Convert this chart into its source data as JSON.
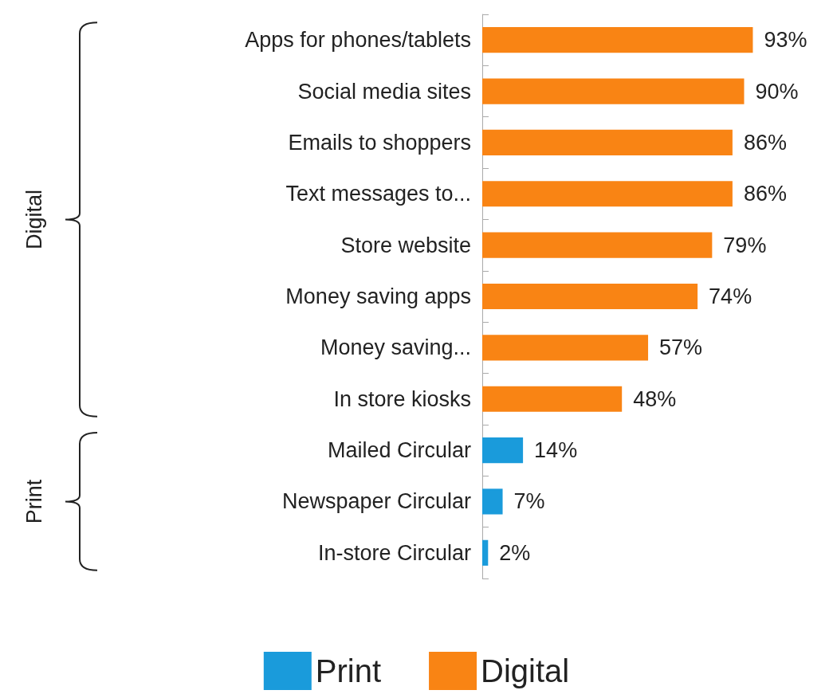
{
  "chart_data": {
    "type": "bar",
    "orientation": "horizontal",
    "stacked": true,
    "categories": [
      "Apps for phones/tablets",
      "Social media sites",
      "Emails to shoppers",
      "Text messages to...",
      "Store website",
      "Money saving apps",
      "Money saving...",
      "In store kiosks",
      "Mailed Circular",
      "Newspaper Circular",
      "In-store Circular"
    ],
    "series": [
      {
        "name": "Digital",
        "color": "#f98414",
        "values": [
          93,
          90,
          86,
          86,
          79,
          74,
          57,
          48,
          null,
          null,
          null
        ],
        "value_labels": [
          "93%",
          "90%",
          "86%",
          "86%",
          "79%",
          "74%",
          "57%",
          "48%",
          null,
          null,
          null
        ]
      },
      {
        "name": "Print",
        "color": "#1a9bdb",
        "values": [
          null,
          null,
          null,
          null,
          null,
          null,
          null,
          null,
          14,
          7,
          2
        ],
        "value_labels": [
          null,
          null,
          null,
          null,
          null,
          null,
          null,
          null,
          "14%",
          "7%",
          "2%"
        ]
      }
    ],
    "legend": "bottom",
    "annotations": [
      "Digital",
      "Print"
    ]
  }
}
